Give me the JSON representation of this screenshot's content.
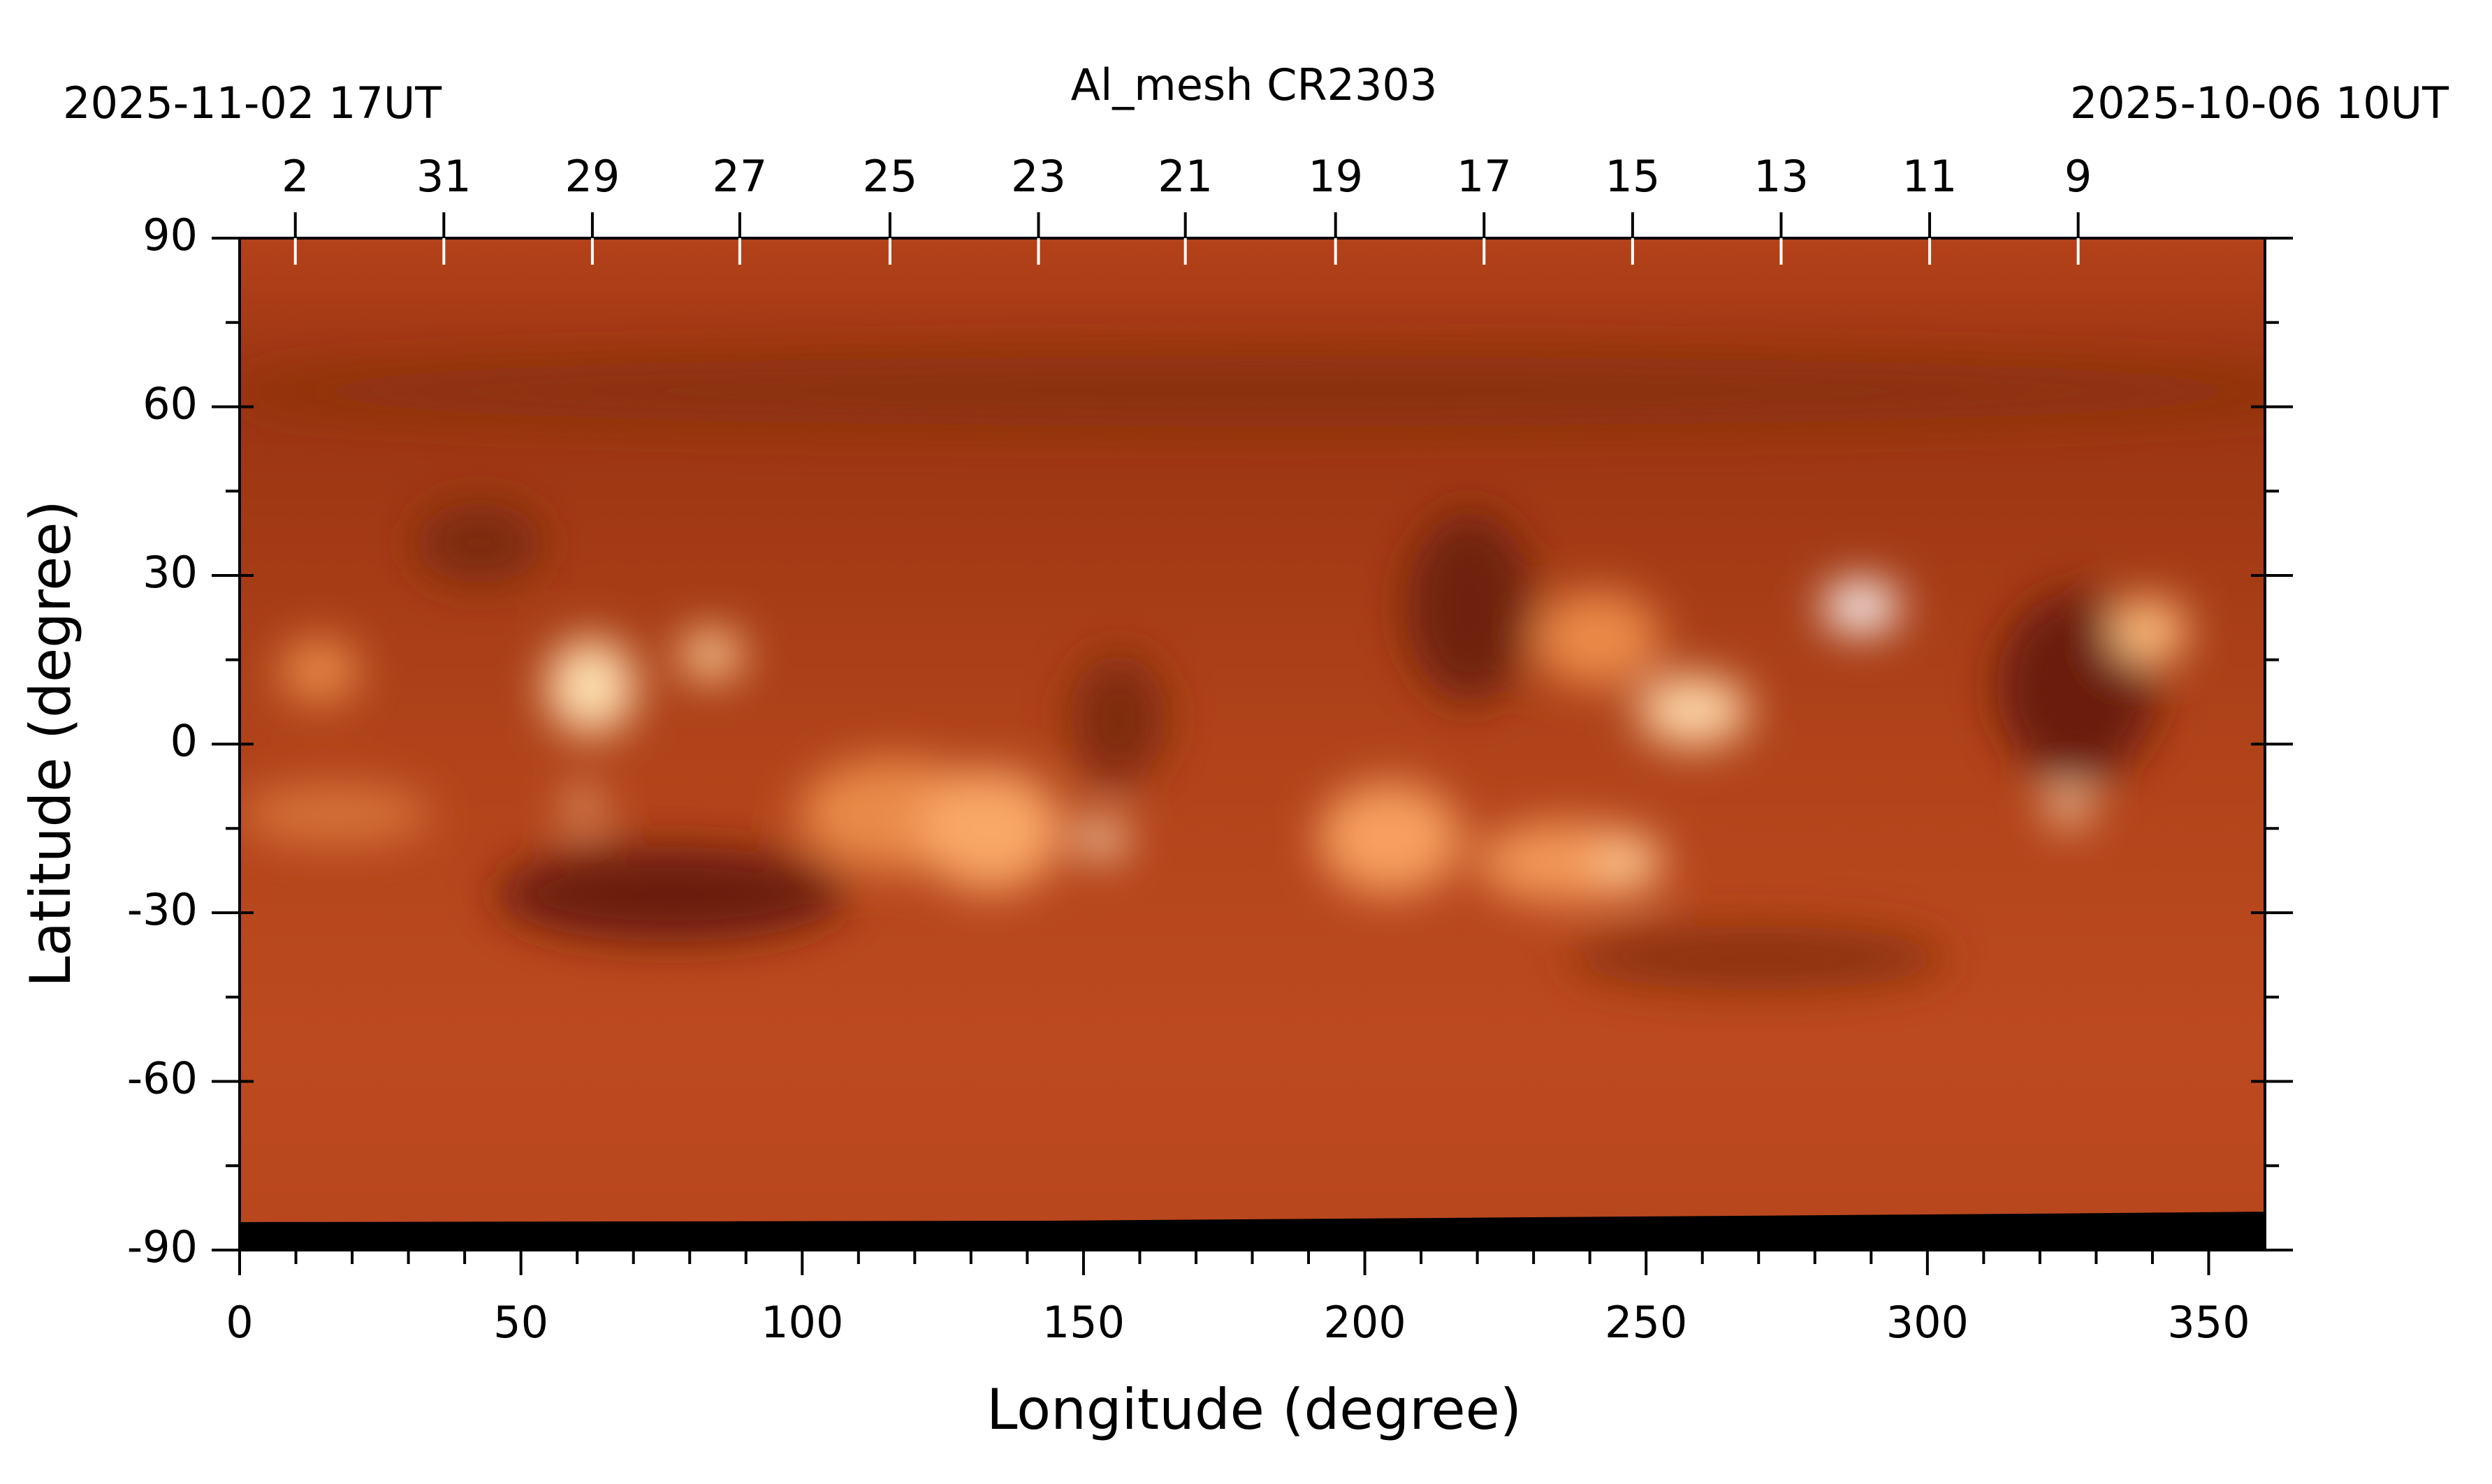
{
  "chart_data": {
    "type": "heatmap",
    "title": "Al_mesh   CR2303",
    "start_label": "2025-11-02  17UT",
    "end_label": "2025-10-06  10UT",
    "x_label": "Longitude (degree)",
    "y_label": "Latitude (degree)",
    "xlim": [
      0,
      360
    ],
    "ylim": [
      -90,
      90
    ],
    "xticks": [
      0,
      50,
      100,
      150,
      200,
      250,
      300,
      350
    ],
    "yticks": [
      -90,
      -60,
      -30,
      0,
      30,
      60,
      90
    ],
    "top_ticks": [
      {
        "value": 9.9,
        "label": "2"
      },
      {
        "value": 36.3,
        "label": "31"
      },
      {
        "value": 62.7,
        "label": "29"
      },
      {
        "value": 88.9,
        "label": "27"
      },
      {
        "value": 115.6,
        "label": "25"
      },
      {
        "value": 142,
        "label": "23"
      },
      {
        "value": 168.1,
        "label": "21"
      },
      {
        "value": 194.8,
        "label": "19"
      },
      {
        "value": 221.2,
        "label": "17"
      },
      {
        "value": 247.6,
        "label": "15"
      },
      {
        "value": 274,
        "label": "13"
      },
      {
        "value": 300.4,
        "label": "11"
      },
      {
        "value": 326.8,
        "label": "9"
      }
    ]
  }
}
